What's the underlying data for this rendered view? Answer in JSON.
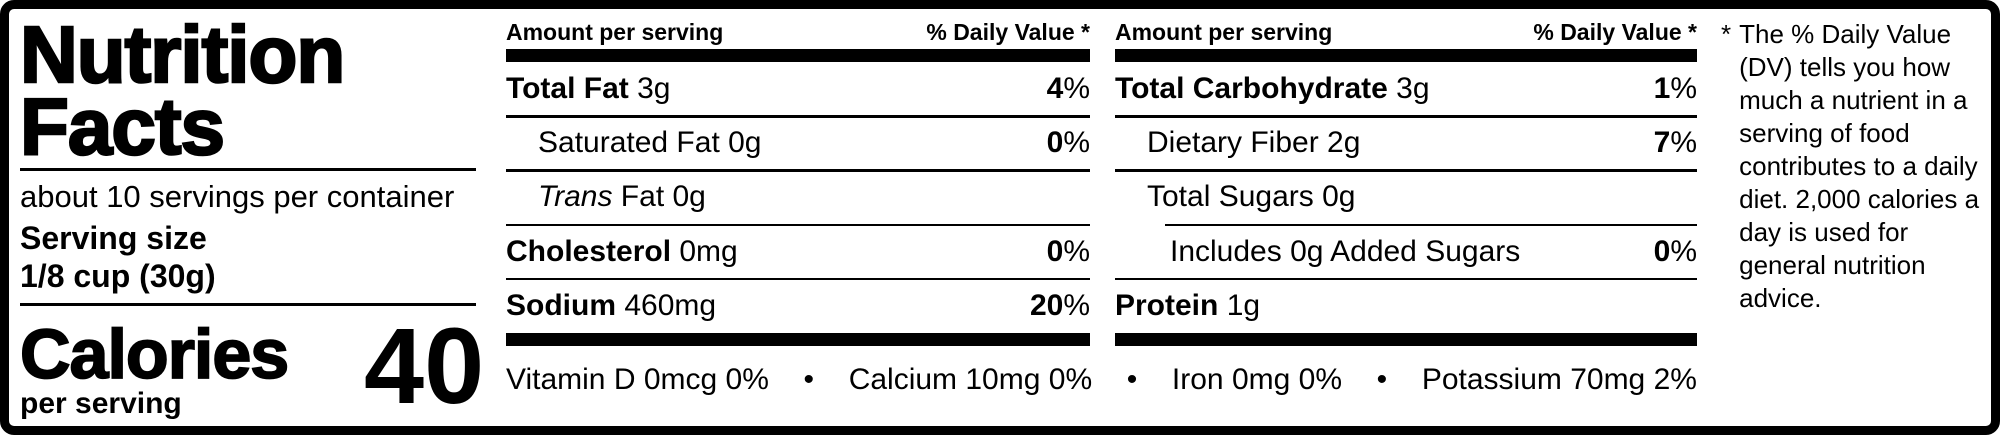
{
  "colors": {
    "ink": "#000000",
    "paper": "#ffffff"
  },
  "label": {
    "title_line1": "Nutrition",
    "title_line2": "Facts",
    "servings_per_container": "about 10 servings per container",
    "serving_size_label": "Serving size",
    "serving_size_value": "1/8 cup (30g)",
    "calories_label": "Calories",
    "calories_sub": "per serving",
    "calories_value": "40"
  },
  "columns": [
    {
      "header_left": "Amount per serving",
      "header_right": "% Daily Value *",
      "rows": [
        {
          "segments": [
            {
              "t": "Total Fat",
              "b": 1
            },
            {
              "t": " 3g"
            }
          ],
          "dv": "4%",
          "indent": 0
        },
        {
          "segments": [
            {
              "t": "Saturated Fat 0g"
            }
          ],
          "dv": "0%",
          "indent": 1
        },
        {
          "segments": [
            {
              "t": "Trans",
              "i": 1
            },
            {
              "t": " Fat 0g"
            }
          ],
          "dv": "",
          "indent": 1
        },
        {
          "segments": [
            {
              "t": "Cholesterol",
              "b": 1
            },
            {
              "t": " 0mg"
            }
          ],
          "dv": "0%",
          "indent": 0
        },
        {
          "segments": [
            {
              "t": "Sodium",
              "b": 1
            },
            {
              "t": " 460mg"
            }
          ],
          "dv": "20%",
          "indent": 0
        }
      ]
    },
    {
      "header_left": "Amount per serving",
      "header_right": "% Daily Value *",
      "rows": [
        {
          "segments": [
            {
              "t": "Total Carbohydrate",
              "b": 1
            },
            {
              "t": " 3g"
            }
          ],
          "dv": "1%",
          "indent": 0
        },
        {
          "segments": [
            {
              "t": "Dietary Fiber 2g"
            }
          ],
          "dv": "7%",
          "indent": 1
        },
        {
          "segments": [
            {
              "t": "Total Sugars 0g"
            }
          ],
          "dv": "",
          "indent": 1
        },
        {
          "segments": [
            {
              "t": "Includes 0g Added Sugars"
            }
          ],
          "dv": "0%",
          "indent": 2,
          "rule_indent": true
        },
        {
          "segments": [
            {
              "t": "Protein",
              "b": 1
            },
            {
              "t": " 1g"
            }
          ],
          "dv": "",
          "indent": 0
        }
      ]
    }
  ],
  "micronutrients": {
    "separator": "•",
    "items": [
      "Vitamin D 0mcg 0%",
      "Calcium 10mg 0%",
      "Iron 0mg 0%",
      "Potassium 70mg 2%"
    ]
  },
  "footnote": {
    "marker": "*",
    "text": "The % Daily Value (DV) tells you how much a nutrient in a serving of food contributes to a daily diet. 2,000 calories a day is used for general nutrition advice."
  }
}
